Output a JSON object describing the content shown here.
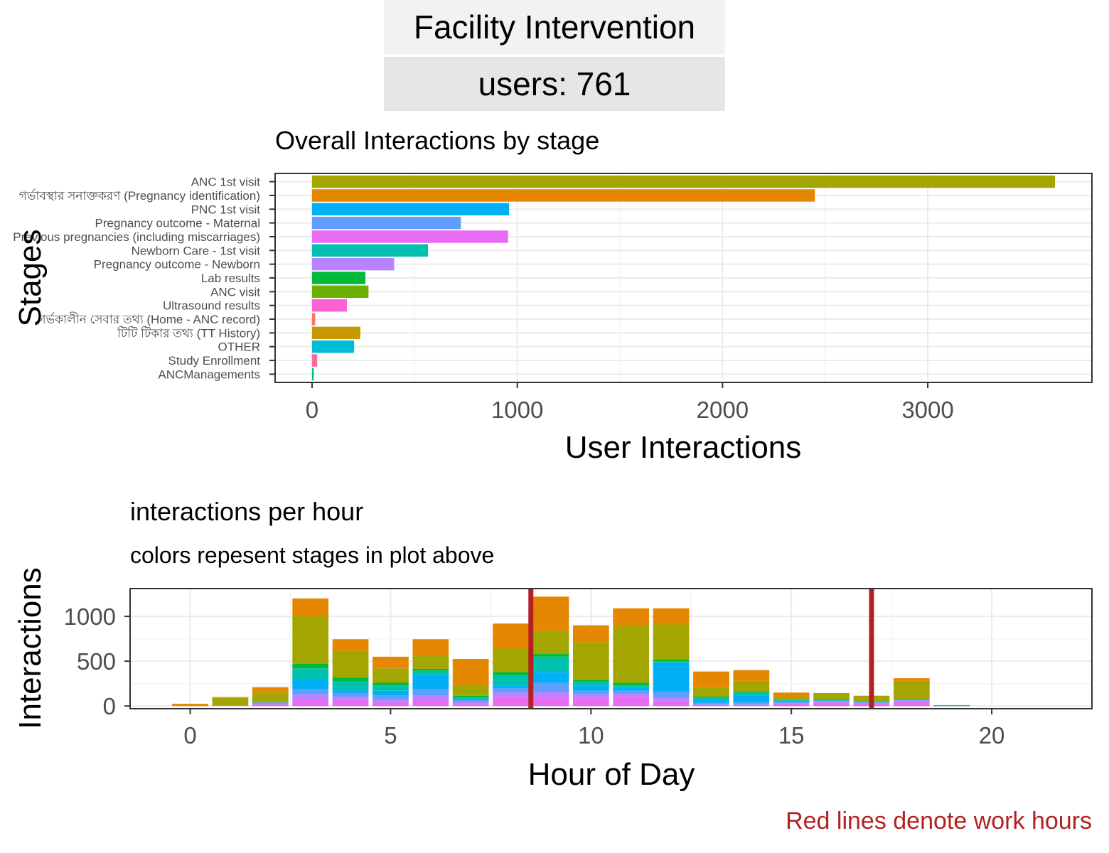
{
  "page": {
    "strip_title": "Facility Intervention",
    "strip_users": "users: 761",
    "footnote": "Red lines denote work hours"
  },
  "chart_data": [
    {
      "type": "bar",
      "orientation": "horizontal",
      "title": "Overall Interactions by stage",
      "xlabel": "User Interactions",
      "ylabel": "Stages",
      "xlim": [
        -180,
        3800
      ],
      "xticks": [
        0,
        1000,
        2000,
        3000
      ],
      "grid": true,
      "categories": [
        "ANC 1st visit",
        "গর্ভাবস্থার সনাক্তকরণ (Pregnancy identification)",
        "PNC 1st visit",
        "Pregnancy outcome - Maternal",
        "Previous pregnancies (including miscarriages)",
        "Newborn Care - 1st visit",
        "Pregnancy outcome - Newborn",
        "Lab results",
        "ANC visit",
        "Ultrasound results",
        "গর্ভকালীন সেবার তথ্য (Home - ANC record)",
        "টিটি টিকার তথ্য (TT History)",
        "OTHER",
        "Study Enrollment",
        "ANCManagements"
      ],
      "values": [
        3620,
        2450,
        960,
        725,
        955,
        565,
        400,
        260,
        275,
        170,
        15,
        235,
        205,
        25,
        8
      ],
      "colors": [
        "#A3A500",
        "#E58700",
        "#00B0F6",
        "#619CFF",
        "#E76BF3",
        "#00C0AF",
        "#B983FF",
        "#00BA38",
        "#6BB100",
        "#FD61D1",
        "#F8766D",
        "#C99800",
        "#00BCD8",
        "#FF67A4",
        "#00BF7D"
      ]
    },
    {
      "type": "bar",
      "stacked": true,
      "title": "interactions per hour",
      "subtitle": "colors repesent stages in plot above",
      "xlabel": "Hour of Day",
      "ylabel": "Interactions",
      "xlim": [
        -1.5,
        22.5
      ],
      "ylim": [
        -30,
        1310
      ],
      "xticks": [
        0,
        5,
        10,
        15,
        20
      ],
      "yticks": [
        0,
        500,
        1000
      ],
      "grid": true,
      "vlines": [
        8.5,
        17
      ],
      "vline_color": "#B22222",
      "hours": [
        0,
        1,
        2,
        3,
        4,
        5,
        6,
        7,
        8,
        9,
        10,
        11,
        12,
        13,
        14,
        15,
        16,
        17,
        18,
        19
      ],
      "series": [
        {
          "stage": "Previous pregnancies (including miscarriages)",
          "color": "#E76BF3",
          "values": [
            0,
            5,
            15,
            80,
            70,
            40,
            70,
            20,
            110,
            100,
            90,
            110,
            60,
            10,
            10,
            25,
            40,
            25,
            50,
            0
          ]
        },
        {
          "stage": "Pregnancy outcome - Newborn",
          "color": "#B983FF",
          "values": [
            0,
            0,
            10,
            50,
            35,
            30,
            45,
            25,
            40,
            60,
            40,
            30,
            30,
            10,
            10,
            10,
            10,
            10,
            10,
            0
          ]
        },
        {
          "stage": "Pregnancy outcome - Maternal",
          "color": "#619CFF",
          "values": [
            0,
            0,
            15,
            60,
            40,
            50,
            70,
            20,
            50,
            100,
            40,
            30,
            70,
            15,
            20,
            10,
            5,
            5,
            5,
            0
          ]
        },
        {
          "stage": "PNC 1st visit",
          "color": "#00B0F6",
          "values": [
            0,
            0,
            0,
            100,
            30,
            50,
            160,
            15,
            30,
            120,
            60,
            40,
            320,
            45,
            80,
            15,
            5,
            5,
            5,
            0
          ]
        },
        {
          "stage": "Newborn Care - 1st visit",
          "color": "#00C0AF",
          "values": [
            0,
            0,
            0,
            130,
            100,
            60,
            50,
            15,
            110,
            170,
            40,
            20,
            20,
            15,
            30,
            10,
            5,
            5,
            5,
            10
          ]
        },
        {
          "stage": "Lab results",
          "color": "#00BA38",
          "values": [
            0,
            0,
            0,
            50,
            40,
            30,
            20,
            20,
            40,
            30,
            20,
            30,
            20,
            10,
            10,
            5,
            5,
            5,
            5,
            0
          ]
        },
        {
          "stage": "ANC 1st visit",
          "color": "#A3A500",
          "values": [
            0,
            85,
            110,
            530,
            300,
            160,
            150,
            120,
            260,
            260,
            420,
            630,
            390,
            100,
            120,
            30,
            75,
            60,
            200,
            0
          ]
        },
        {
          "stage": "গর্ভাবস্থার সনাক্তকরণ (Pregnancy identification)",
          "color": "#E58700",
          "values": [
            25,
            10,
            60,
            200,
            130,
            130,
            180,
            290,
            280,
            380,
            190,
            200,
            180,
            180,
            120,
            45,
            0,
            0,
            30,
            0
          ]
        }
      ]
    }
  ]
}
